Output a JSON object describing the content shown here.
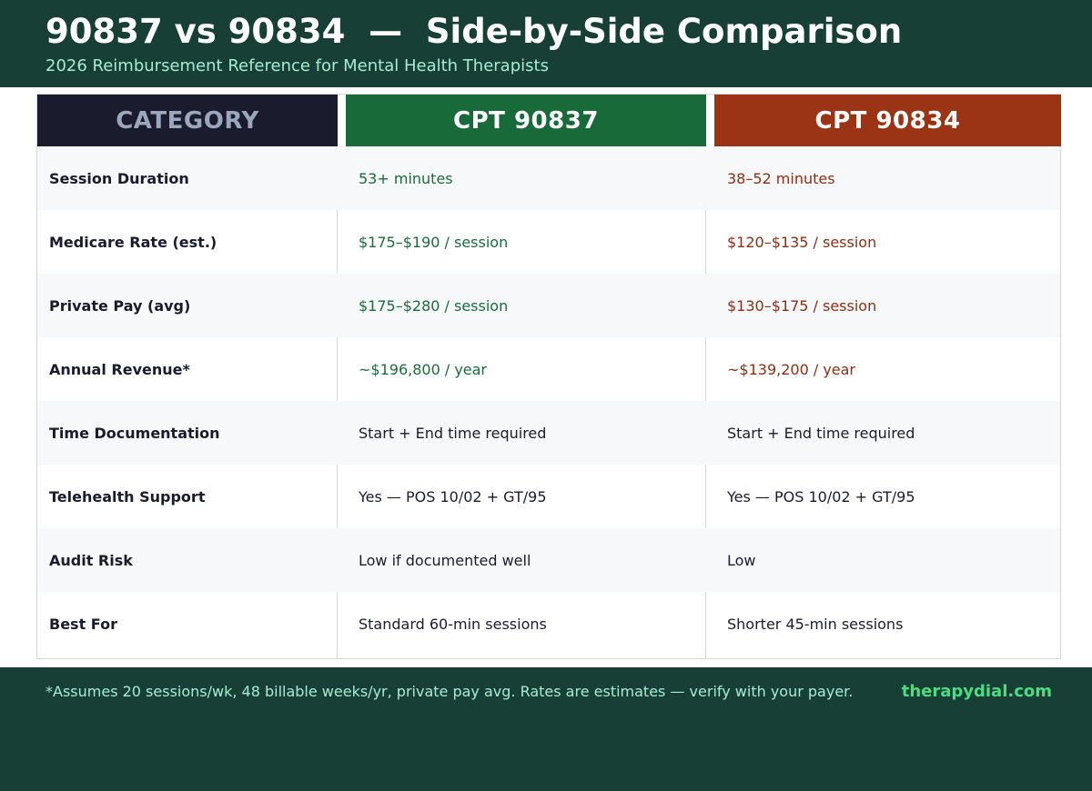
{
  "header": {
    "title": "90837 vs 90834  —  Side-by-Side Comparison",
    "subtitle": "2026 Reimbursement Reference for Mental Health Therapists"
  },
  "table": {
    "columns": [
      "CATEGORY",
      "CPT 90837",
      "CPT 90834"
    ],
    "rows": [
      {
        "label": "Session Duration",
        "a": "53+ minutes",
        "b": "38–52 minutes"
      },
      {
        "label": "Medicare Rate (est.)",
        "a": "$175–$190 / session",
        "b": "$120–$135 / session"
      },
      {
        "label": "Private Pay (avg)",
        "a": "$175–$280 / session",
        "b": "$130–$175 / session"
      },
      {
        "label": "Annual Revenue*",
        "a": "~$196,800 / year",
        "b": "~$139,200 / year"
      },
      {
        "label": "Time Documentation",
        "a": "Start + End time required",
        "b": "Start + End time required"
      },
      {
        "label": "Telehealth Support",
        "a": "Yes — POS 10/02 + GT/95",
        "b": "Yes — POS 10/02 + GT/95"
      },
      {
        "label": "Audit Risk",
        "a": "Low if documented well",
        "b": "Low"
      },
      {
        "label": "Best For",
        "a": "Standard 60-min sessions",
        "b": "Shorter 45-min sessions"
      }
    ]
  },
  "footer": {
    "note": "*Assumes 20 sessions/wk, 48 billable weeks/yr, private pay avg.  Rates are estimates — verify with your payer.",
    "brand": "therapydial.com"
  },
  "colors": {
    "header_bg": "#173f36",
    "category_header_bg": "#1b1b2e",
    "cpt_90837_accent": "#186a38",
    "cpt_90834_accent": "#9a3415",
    "brand": "#4ade80"
  }
}
